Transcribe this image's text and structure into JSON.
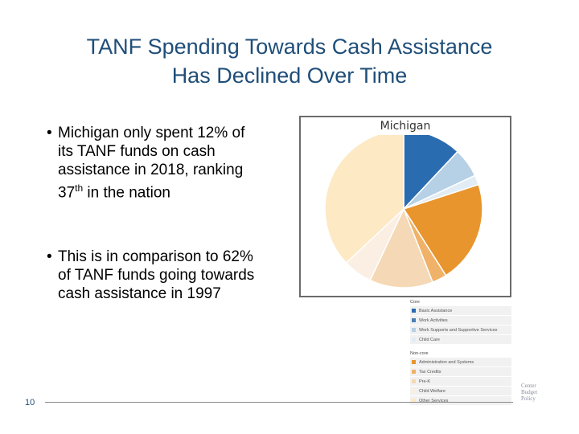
{
  "slide": {
    "title_line1": "TANF Spending Towards Cash Assistance",
    "title_line2": "Has Declined Over Time",
    "bullet1": {
      "line1": "Michigan only spent 12% of",
      "line2": "its TANF funds on cash",
      "line3": "assistance in 2018, ranking",
      "line4_main": "37",
      "line4_sup": "th",
      "line4_rest": " in the nation"
    },
    "bullet2": {
      "line1": "This is in comparison to 62%",
      "line2": "of TANF funds going towards",
      "line3": "cash assistance in 1997"
    },
    "bullet_symbol": "•",
    "page_number": "10",
    "logo": {
      "line1": "Center",
      "line2": "Budget",
      "line3": "Policy"
    }
  },
  "chart_data": {
    "type": "pie",
    "title": "Michigan",
    "legend_position": "bottom-right",
    "groups": [
      {
        "name": "Core",
        "categories": [
          "Basic Assistance",
          "Work Activities",
          "Work Supports and Supportive Services",
          "Child Care"
        ]
      },
      {
        "name": "Non-core",
        "categories": [
          "Administration and Systems",
          "Tax Credits",
          "Pre-K",
          "Child Welfare",
          "Other Services"
        ]
      }
    ],
    "slices": [
      {
        "label": "Basic Assistance",
        "value": 12,
        "color": "#2a6cb0"
      },
      {
        "label": "Work Activities",
        "value": 0,
        "color": "#4a7fb8"
      },
      {
        "label": "Work Supports and Supportive Services",
        "value": 6,
        "color": "#b6d0e6"
      },
      {
        "label": "Child Care",
        "value": 2,
        "color": "#e1ecf5"
      },
      {
        "label": "Administration and Systems",
        "value": 21,
        "color": "#e8952e"
      },
      {
        "label": "Tax Credits",
        "value": 3,
        "color": "#efb268"
      },
      {
        "label": "Pre-K",
        "value": 13,
        "color": "#f5d8b5"
      },
      {
        "label": "Child Welfare",
        "value": 6,
        "color": "#fbeee2"
      },
      {
        "label": "Other Services",
        "value": 37,
        "color": "#fde9c4"
      }
    ]
  }
}
